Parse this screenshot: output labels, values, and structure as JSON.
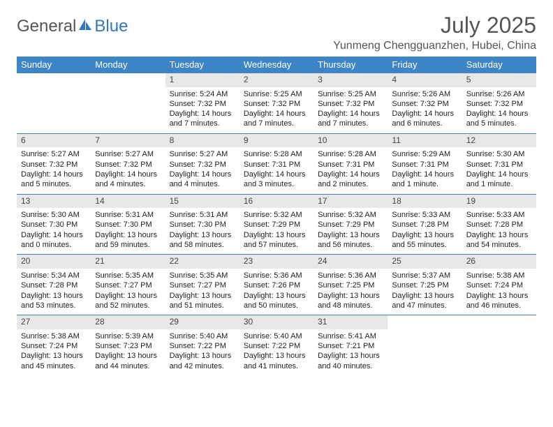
{
  "logo": {
    "text1": "General",
    "text2": "Blue"
  },
  "title": "July 2025",
  "subtitle": "Yunmeng Chengguanzhen, Hubei, China",
  "colors": {
    "header_bg": "#3d85c6",
    "header_text": "#ffffff",
    "daynum_bg": "#e8e8e8",
    "border": "#3d85c6",
    "title_color": "#555555",
    "logo_blue": "#2f79c3"
  },
  "fontsize": {
    "title": 32,
    "subtitle": 16,
    "th": 13,
    "daynum": 12,
    "detail": 11
  },
  "weekdays": [
    "Sunday",
    "Monday",
    "Tuesday",
    "Wednesday",
    "Thursday",
    "Friday",
    "Saturday"
  ],
  "weeks": [
    [
      null,
      null,
      {
        "n": "1",
        "sr": "Sunrise: 5:24 AM",
        "ss": "Sunset: 7:32 PM",
        "d1": "Daylight: 14 hours",
        "d2": "and 7 minutes."
      },
      {
        "n": "2",
        "sr": "Sunrise: 5:25 AM",
        "ss": "Sunset: 7:32 PM",
        "d1": "Daylight: 14 hours",
        "d2": "and 7 minutes."
      },
      {
        "n": "3",
        "sr": "Sunrise: 5:25 AM",
        "ss": "Sunset: 7:32 PM",
        "d1": "Daylight: 14 hours",
        "d2": "and 7 minutes."
      },
      {
        "n": "4",
        "sr": "Sunrise: 5:26 AM",
        "ss": "Sunset: 7:32 PM",
        "d1": "Daylight: 14 hours",
        "d2": "and 6 minutes."
      },
      {
        "n": "5",
        "sr": "Sunrise: 5:26 AM",
        "ss": "Sunset: 7:32 PM",
        "d1": "Daylight: 14 hours",
        "d2": "and 5 minutes."
      }
    ],
    [
      {
        "n": "6",
        "sr": "Sunrise: 5:27 AM",
        "ss": "Sunset: 7:32 PM",
        "d1": "Daylight: 14 hours",
        "d2": "and 5 minutes."
      },
      {
        "n": "7",
        "sr": "Sunrise: 5:27 AM",
        "ss": "Sunset: 7:32 PM",
        "d1": "Daylight: 14 hours",
        "d2": "and 4 minutes."
      },
      {
        "n": "8",
        "sr": "Sunrise: 5:27 AM",
        "ss": "Sunset: 7:32 PM",
        "d1": "Daylight: 14 hours",
        "d2": "and 4 minutes."
      },
      {
        "n": "9",
        "sr": "Sunrise: 5:28 AM",
        "ss": "Sunset: 7:31 PM",
        "d1": "Daylight: 14 hours",
        "d2": "and 3 minutes."
      },
      {
        "n": "10",
        "sr": "Sunrise: 5:28 AM",
        "ss": "Sunset: 7:31 PM",
        "d1": "Daylight: 14 hours",
        "d2": "and 2 minutes."
      },
      {
        "n": "11",
        "sr": "Sunrise: 5:29 AM",
        "ss": "Sunset: 7:31 PM",
        "d1": "Daylight: 14 hours",
        "d2": "and 1 minute."
      },
      {
        "n": "12",
        "sr": "Sunrise: 5:30 AM",
        "ss": "Sunset: 7:31 PM",
        "d1": "Daylight: 14 hours",
        "d2": "and 1 minute."
      }
    ],
    [
      {
        "n": "13",
        "sr": "Sunrise: 5:30 AM",
        "ss": "Sunset: 7:30 PM",
        "d1": "Daylight: 14 hours",
        "d2": "and 0 minutes."
      },
      {
        "n": "14",
        "sr": "Sunrise: 5:31 AM",
        "ss": "Sunset: 7:30 PM",
        "d1": "Daylight: 13 hours",
        "d2": "and 59 minutes."
      },
      {
        "n": "15",
        "sr": "Sunrise: 5:31 AM",
        "ss": "Sunset: 7:30 PM",
        "d1": "Daylight: 13 hours",
        "d2": "and 58 minutes."
      },
      {
        "n": "16",
        "sr": "Sunrise: 5:32 AM",
        "ss": "Sunset: 7:29 PM",
        "d1": "Daylight: 13 hours",
        "d2": "and 57 minutes."
      },
      {
        "n": "17",
        "sr": "Sunrise: 5:32 AM",
        "ss": "Sunset: 7:29 PM",
        "d1": "Daylight: 13 hours",
        "d2": "and 56 minutes."
      },
      {
        "n": "18",
        "sr": "Sunrise: 5:33 AM",
        "ss": "Sunset: 7:28 PM",
        "d1": "Daylight: 13 hours",
        "d2": "and 55 minutes."
      },
      {
        "n": "19",
        "sr": "Sunrise: 5:33 AM",
        "ss": "Sunset: 7:28 PM",
        "d1": "Daylight: 13 hours",
        "d2": "and 54 minutes."
      }
    ],
    [
      {
        "n": "20",
        "sr": "Sunrise: 5:34 AM",
        "ss": "Sunset: 7:28 PM",
        "d1": "Daylight: 13 hours",
        "d2": "and 53 minutes."
      },
      {
        "n": "21",
        "sr": "Sunrise: 5:35 AM",
        "ss": "Sunset: 7:27 PM",
        "d1": "Daylight: 13 hours",
        "d2": "and 52 minutes."
      },
      {
        "n": "22",
        "sr": "Sunrise: 5:35 AM",
        "ss": "Sunset: 7:27 PM",
        "d1": "Daylight: 13 hours",
        "d2": "and 51 minutes."
      },
      {
        "n": "23",
        "sr": "Sunrise: 5:36 AM",
        "ss": "Sunset: 7:26 PM",
        "d1": "Daylight: 13 hours",
        "d2": "and 50 minutes."
      },
      {
        "n": "24",
        "sr": "Sunrise: 5:36 AM",
        "ss": "Sunset: 7:25 PM",
        "d1": "Daylight: 13 hours",
        "d2": "and 48 minutes."
      },
      {
        "n": "25",
        "sr": "Sunrise: 5:37 AM",
        "ss": "Sunset: 7:25 PM",
        "d1": "Daylight: 13 hours",
        "d2": "and 47 minutes."
      },
      {
        "n": "26",
        "sr": "Sunrise: 5:38 AM",
        "ss": "Sunset: 7:24 PM",
        "d1": "Daylight: 13 hours",
        "d2": "and 46 minutes."
      }
    ],
    [
      {
        "n": "27",
        "sr": "Sunrise: 5:38 AM",
        "ss": "Sunset: 7:24 PM",
        "d1": "Daylight: 13 hours",
        "d2": "and 45 minutes."
      },
      {
        "n": "28",
        "sr": "Sunrise: 5:39 AM",
        "ss": "Sunset: 7:23 PM",
        "d1": "Daylight: 13 hours",
        "d2": "and 44 minutes."
      },
      {
        "n": "29",
        "sr": "Sunrise: 5:40 AM",
        "ss": "Sunset: 7:22 PM",
        "d1": "Daylight: 13 hours",
        "d2": "and 42 minutes."
      },
      {
        "n": "30",
        "sr": "Sunrise: 5:40 AM",
        "ss": "Sunset: 7:22 PM",
        "d1": "Daylight: 13 hours",
        "d2": "and 41 minutes."
      },
      {
        "n": "31",
        "sr": "Sunrise: 5:41 AM",
        "ss": "Sunset: 7:21 PM",
        "d1": "Daylight: 13 hours",
        "d2": "and 40 minutes."
      },
      null,
      null
    ]
  ]
}
